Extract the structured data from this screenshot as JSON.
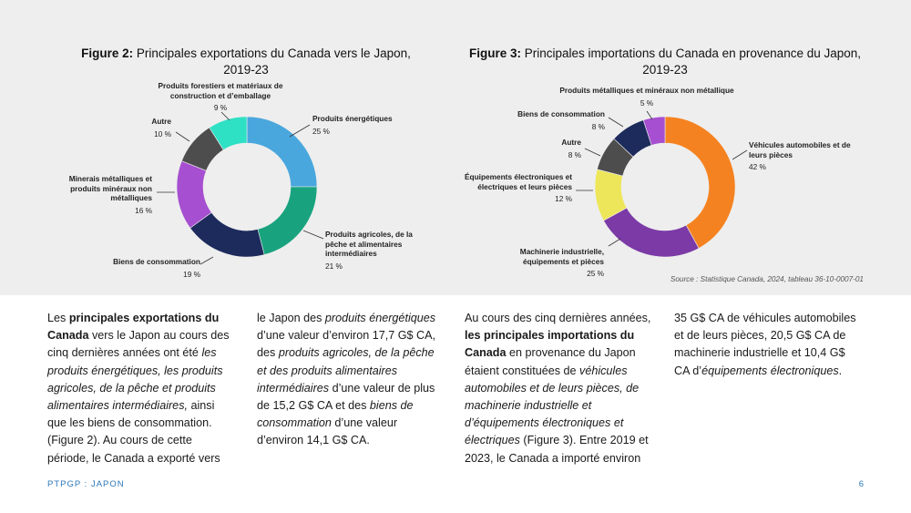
{
  "figure2": {
    "title_prefix": "Figure 2:",
    "title_text": "Principales exportations du Canada vers le Japon,",
    "title_line2": "2019-23",
    "chart_data": {
      "type": "pie",
      "donut": true,
      "categories": [
        "Produits énergétiques",
        "Produits agricoles, de la pêche et alimentaires intermédiaires",
        "Biens de consommation",
        "Minerais métalliques et produits minéraux non métalliques",
        "Autre",
        "Produits forestiers et matériaux de construction et d’emballage"
      ],
      "values": [
        25,
        21,
        19,
        16,
        10,
        9
      ],
      "colors": [
        "#4aa7dd",
        "#18a37e",
        "#1c2a5c",
        "#a64fd0",
        "#4d4d4d",
        "#2ee0c4"
      ]
    },
    "labels": [
      {
        "name": "Produits énergétiques",
        "pct": "25 %"
      },
      {
        "name": "Produits agricoles, de la pêche et alimentaires intermédiaires",
        "pct": "21 %"
      },
      {
        "name": "Biens de consommation",
        "pct": "19 %"
      },
      {
        "name": "Minerais métalliques et produits minéraux non métalliques",
        "pct": "16 %"
      },
      {
        "name": "Autre",
        "pct": "10 %"
      },
      {
        "name": "Produits forestiers et matériaux de construction et d’emballage",
        "pct": "9 %"
      }
    ]
  },
  "figure3": {
    "title_prefix": "Figure 3:",
    "title_text": "Principales importations du Canada en provenance du Japon,",
    "title_line2": "2019-23",
    "chart_data": {
      "type": "pie",
      "donut": true,
      "categories": [
        "Véhicules automobiles et de leurs pièces",
        "Machinerie industrielle, équipements et pièces",
        "Équipements électroniques et électriques et leurs pièces",
        "Autre",
        "Biens de consommation",
        "Produits métalliques et minéraux non métallique"
      ],
      "values": [
        42,
        25,
        12,
        8,
        8,
        5
      ],
      "colors": [
        "#f58220",
        "#7b3aa6",
        "#eee65a",
        "#4d4d4d",
        "#1c2a5c",
        "#a64fd0"
      ]
    },
    "labels": [
      {
        "name": "Véhicules automobiles et de leurs pièces",
        "pct": "42 %"
      },
      {
        "name": "Machinerie industrielle, équipements et pièces",
        "pct": "25 %"
      },
      {
        "name": "Équipements électroniques et électriques et leurs pièces",
        "pct": "12 %"
      },
      {
        "name": "Autre",
        "pct": "8 %"
      },
      {
        "name": "Biens de consommation",
        "pct": "8 %"
      },
      {
        "name": "Produits métalliques et minéraux non métallique",
        "pct": "5 %"
      }
    ],
    "source": "Source : Statistique Canada, 2024, tableau 36-10-0007-01"
  },
  "body_text": {
    "col1": [
      {
        "t": "Les "
      },
      {
        "t": "principales exportations du Canada",
        "b": true
      },
      {
        "t": " vers le Japon au cours des cinq dernières années ont été "
      },
      {
        "t": "les produits énergétiques, les produits agricoles, de la pêche et produits alimentaires intermédiaires,",
        "i": true
      },
      {
        "t": " ainsi que les biens de consommation. (Figure 2). Au cours de cette période, le Canada a exporté vers"
      }
    ],
    "col2": [
      {
        "t": "le Japon des "
      },
      {
        "t": "produits énergétiques",
        "i": true
      },
      {
        "t": " d’une valeur d’environ 17,7 G$ CA, des "
      },
      {
        "t": "produits agricoles, de la pêche et des produits alimentaires intermédiaires",
        "i": true
      },
      {
        "t": " d’une valeur de plus de 15,2 G$ CA et des "
      },
      {
        "t": "biens de consommation",
        "i": true
      },
      {
        "t": " d’une valeur d’environ 14,1 G$ CA."
      }
    ],
    "col3": [
      {
        "t": "Au cours des cinq dernières années, "
      },
      {
        "t": "les principales importations du Canada",
        "b": true
      },
      {
        "t": " en provenance du Japon étaient constituées de "
      },
      {
        "t": "véhicules automobiles et de leurs pièces, de machinerie industrielle et d’équipements électroniques et électriques",
        "i": true
      },
      {
        "t": " (Figure 3). Entre 2019 et 2023, le Canada a importé environ"
      }
    ],
    "col4": [
      {
        "t": "35 G$ CA de véhicules automobiles et de leurs pièces, 20,5 G$ CA de machinerie industrielle et 10,4 G$ CA d’"
      },
      {
        "t": "équipements électroniques",
        "i": true
      },
      {
        "t": "."
      }
    ]
  },
  "footer": {
    "left": "PTPGP : JAPON",
    "page": "6"
  }
}
